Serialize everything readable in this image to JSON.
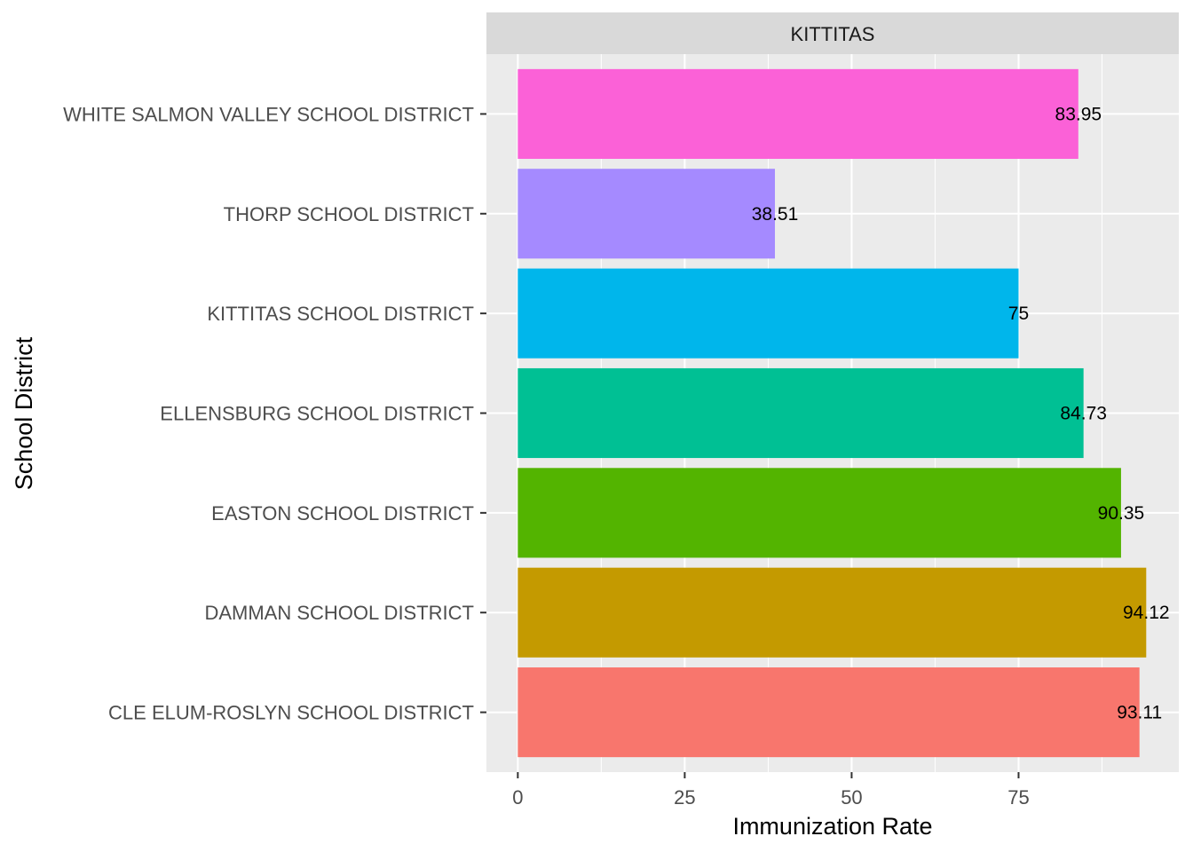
{
  "chart_data": {
    "type": "bar",
    "orientation": "horizontal",
    "facet": "KITTITAS",
    "categories": [
      "CLE ELUM-ROSLYN SCHOOL DISTRICT",
      "DAMMAN SCHOOL DISTRICT",
      "EASTON SCHOOL DISTRICT",
      "ELLENSBURG SCHOOL DISTRICT",
      "KITTITAS SCHOOL DISTRICT",
      "THORP SCHOOL DISTRICT",
      "WHITE SALMON VALLEY SCHOOL DISTRICT"
    ],
    "values": [
      93.11,
      94.12,
      90.35,
      84.73,
      75,
      38.51,
      83.95
    ],
    "value_labels": [
      "93.11",
      "94.12",
      "90.35",
      "84.73",
      "75",
      "38.51",
      "83.95"
    ],
    "colors": [
      "#F8766D",
      "#C49A00",
      "#53B400",
      "#00C094",
      "#00B6EB",
      "#A58AFF",
      "#FB61D7"
    ],
    "xlabel": "Immunization Rate",
    "ylabel": "School District",
    "xlim": [
      -4.7,
      99.0
    ],
    "x_ticks": [
      0,
      25,
      50,
      75
    ],
    "x_tick_labels": [
      "0",
      "25",
      "50",
      "75"
    ],
    "grid": true,
    "legend": "none"
  }
}
